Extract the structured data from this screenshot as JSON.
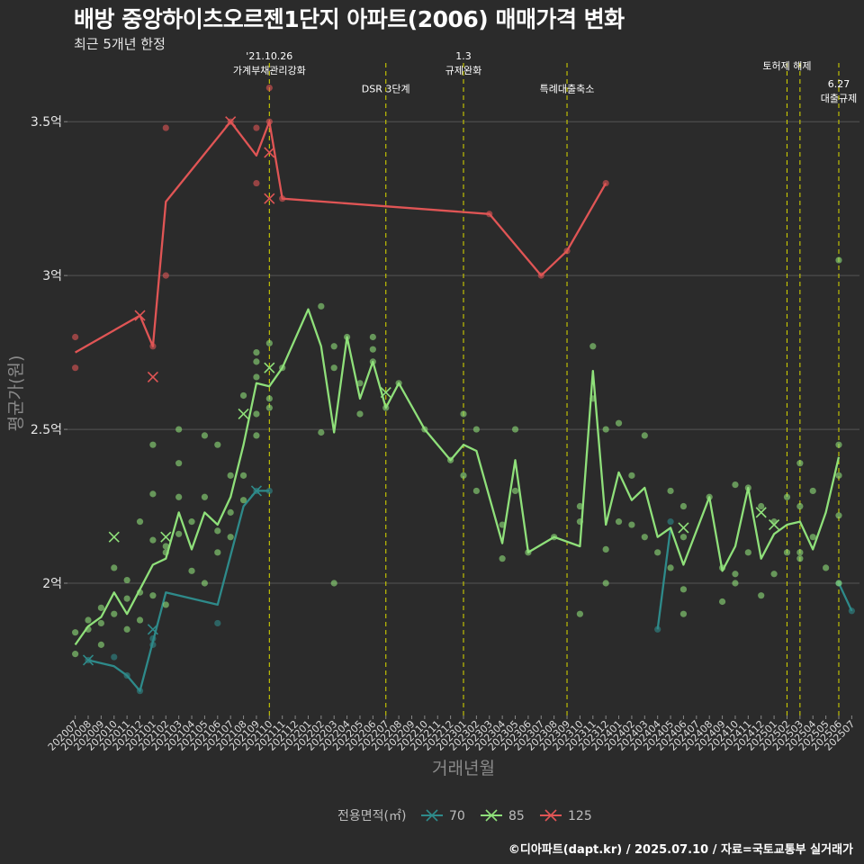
{
  "header": {
    "title": "배방 중앙하이츠오르젠1단지 아파트(2006) 매매가격 변화",
    "subtitle": "최근 5개년 한정"
  },
  "caption": "©디아파트(dapt.kr) / 2025.07.10 / 자료=국토교통부 실거래가",
  "colors": {
    "background": "#2b2b2b",
    "grid": "#555555",
    "vline": "#cccc00",
    "s70": "#2e8a8a",
    "s85": "#8fe07a",
    "s125": "#e05555"
  },
  "chart_data": {
    "type": "line",
    "title": "배방 중앙하이츠오르젠1단지 아파트(2006) 매매가격 변화",
    "subtitle": "최근 5개년 한정",
    "xlabel": "거래년월",
    "ylabel": "평균가(원)",
    "ylim": [
      1.57,
      3.72
    ],
    "yticks": [
      {
        "value": 2.0,
        "label": "2억"
      },
      {
        "value": 2.5,
        "label": "2.5억"
      },
      {
        "value": 3.0,
        "label": "3억"
      },
      {
        "value": 3.5,
        "label": "3.5억"
      }
    ],
    "grid": true,
    "legend_title": "전용면적(㎡)",
    "legend_position": "bottom",
    "x_categories": [
      "202007",
      "202008",
      "202009",
      "202010",
      "202011",
      "202012",
      "202101",
      "202102",
      "202103",
      "202104",
      "202105",
      "202106",
      "202107",
      "202108",
      "202109",
      "202110",
      "202111",
      "202112",
      "202201",
      "202202",
      "202203",
      "202204",
      "202205",
      "202206",
      "202207",
      "202208",
      "202209",
      "202210",
      "202211",
      "202212",
      "202301",
      "202302",
      "202303",
      "202304",
      "202305",
      "202306",
      "202307",
      "202308",
      "202309",
      "202310",
      "202311",
      "202312",
      "202401",
      "202402",
      "202403",
      "202404",
      "202405",
      "202406",
      "202407",
      "202408",
      "202409",
      "202410",
      "202411",
      "202412",
      "202501",
      "202502",
      "202503",
      "202504",
      "202505",
      "202506",
      "202507"
    ],
    "series": [
      {
        "name": "70",
        "color": "#2e8a8a",
        "line": [
          [
            "202008",
            1.75
          ],
          [
            "202010",
            1.73
          ],
          [
            "202011",
            1.7
          ],
          [
            "202012",
            1.65
          ],
          [
            "202101",
            1.81
          ],
          [
            "202102",
            1.97
          ],
          [
            "202106",
            1.93
          ],
          [
            "202108",
            2.25
          ],
          [
            "202109",
            2.3
          ],
          [
            "202110",
            2.3
          ],
          null,
          [
            "202404",
            1.85
          ],
          [
            "202405",
            2.18
          ],
          null,
          [
            "202506",
            2.0
          ],
          [
            "202507",
            1.91
          ]
        ],
        "points": [
          [
            "202008",
            1.75
          ],
          [
            "202010",
            1.76
          ],
          [
            "202011",
            1.7
          ],
          [
            "202012",
            1.65
          ],
          [
            "202101",
            1.8
          ],
          [
            "202101",
            1.82
          ],
          [
            "202106",
            1.87
          ],
          [
            "202109",
            2.3
          ],
          [
            "202110",
            2.3
          ],
          [
            "202404",
            1.85
          ],
          [
            "202405",
            2.2
          ],
          [
            "202506",
            2.0
          ],
          [
            "202507",
            1.91
          ]
        ],
        "cancelled": [
          [
            "202008",
            1.75
          ],
          [
            "202101",
            1.85
          ],
          [
            "202109",
            2.3
          ]
        ]
      },
      {
        "name": "85",
        "color": "#8fe07a",
        "line": [
          [
            "202007",
            1.8
          ],
          [
            "202008",
            1.86
          ],
          [
            "202009",
            1.89
          ],
          [
            "202010",
            1.97
          ],
          [
            "202011",
            1.9
          ],
          [
            "202012",
            1.98
          ],
          [
            "202101",
            2.06
          ],
          [
            "202102",
            2.08
          ],
          [
            "202103",
            2.23
          ],
          [
            "202104",
            2.11
          ],
          [
            "202105",
            2.23
          ],
          [
            "202106",
            2.19
          ],
          [
            "202107",
            2.28
          ],
          [
            "202108",
            2.45
          ],
          [
            "202109",
            2.65
          ],
          [
            "202110",
            2.64
          ],
          [
            "202111",
            2.7
          ],
          [
            "202201",
            2.89
          ],
          [
            "202202",
            2.77
          ],
          [
            "202203",
            2.49
          ],
          [
            "202204",
            2.8
          ],
          [
            "202205",
            2.6
          ],
          [
            "202206",
            2.72
          ],
          [
            "202207",
            2.57
          ],
          [
            "202208",
            2.65
          ],
          [
            "202210",
            2.5
          ],
          [
            "202212",
            2.4
          ],
          [
            "202301",
            2.45
          ],
          [
            "202302",
            2.43
          ],
          [
            "202304",
            2.13
          ],
          [
            "202305",
            2.4
          ],
          [
            "202306",
            2.1
          ],
          [
            "202308",
            2.15
          ],
          [
            "202310",
            2.12
          ],
          [
            "202311",
            2.69
          ],
          [
            "202312",
            2.19
          ],
          [
            "202401",
            2.36
          ],
          [
            "202402",
            2.27
          ],
          [
            "202403",
            2.31
          ],
          [
            "202404",
            2.15
          ],
          [
            "202405",
            2.18
          ],
          [
            "202406",
            2.06
          ],
          [
            "202408",
            2.28
          ],
          [
            "202409",
            2.04
          ],
          [
            "202410",
            2.12
          ],
          [
            "202411",
            2.31
          ],
          [
            "202412",
            2.08
          ],
          [
            "202501",
            2.16
          ],
          [
            "202502",
            2.19
          ],
          [
            "202503",
            2.2
          ],
          [
            "202504",
            2.11
          ],
          [
            "202505",
            2.23
          ],
          [
            "202506",
            2.41
          ]
        ],
        "points": [
          [
            "202007",
            1.77
          ],
          [
            "202007",
            1.84
          ],
          [
            "202008",
            1.85
          ],
          [
            "202008",
            1.88
          ],
          [
            "202009",
            1.87
          ],
          [
            "202009",
            1.92
          ],
          [
            "202009",
            1.8
          ],
          [
            "202010",
            1.9
          ],
          [
            "202010",
            2.05
          ],
          [
            "202011",
            1.95
          ],
          [
            "202011",
            1.85
          ],
          [
            "202011",
            2.01
          ],
          [
            "202012",
            2.2
          ],
          [
            "202012",
            1.97
          ],
          [
            "202012",
            1.88
          ],
          [
            "202101",
            2.45
          ],
          [
            "202101",
            2.29
          ],
          [
            "202101",
            2.14
          ],
          [
            "202101",
            1.96
          ],
          [
            "202102",
            2.1
          ],
          [
            "202102",
            2.12
          ],
          [
            "202102",
            1.93
          ],
          [
            "202103",
            2.5
          ],
          [
            "202103",
            2.39
          ],
          [
            "202103",
            2.28
          ],
          [
            "202103",
            2.16
          ],
          [
            "202104",
            2.2
          ],
          [
            "202104",
            2.04
          ],
          [
            "202105",
            2.48
          ],
          [
            "202105",
            2.28
          ],
          [
            "202105",
            2.0
          ],
          [
            "202106",
            2.45
          ],
          [
            "202106",
            2.17
          ],
          [
            "202106",
            2.1
          ],
          [
            "202107",
            2.35
          ],
          [
            "202107",
            2.23
          ],
          [
            "202107",
            2.15
          ],
          [
            "202108",
            2.61
          ],
          [
            "202108",
            2.35
          ],
          [
            "202108",
            2.27
          ],
          [
            "202109",
            2.75
          ],
          [
            "202109",
            2.72
          ],
          [
            "202109",
            2.67
          ],
          [
            "202109",
            2.55
          ],
          [
            "202109",
            2.48
          ],
          [
            "202110",
            2.78
          ],
          [
            "202110",
            2.6
          ],
          [
            "202110",
            2.57
          ],
          [
            "202111",
            2.7
          ],
          [
            "202202",
            2.9
          ],
          [
            "202202",
            2.49
          ],
          [
            "202203",
            2.77
          ],
          [
            "202203",
            2.7
          ],
          [
            "202203",
            2.0
          ],
          [
            "202204",
            2.8
          ],
          [
            "202205",
            2.65
          ],
          [
            "202205",
            2.55
          ],
          [
            "202206",
            2.8
          ],
          [
            "202206",
            2.76
          ],
          [
            "202206",
            2.72
          ],
          [
            "202207",
            2.57
          ],
          [
            "202208",
            2.65
          ],
          [
            "202210",
            2.5
          ],
          [
            "202212",
            2.4
          ],
          [
            "202301",
            2.55
          ],
          [
            "202301",
            2.35
          ],
          [
            "202302",
            2.5
          ],
          [
            "202302",
            2.3
          ],
          [
            "202304",
            2.19
          ],
          [
            "202304",
            2.08
          ],
          [
            "202305",
            2.5
          ],
          [
            "202305",
            2.3
          ],
          [
            "202306",
            2.1
          ],
          [
            "202308",
            2.15
          ],
          [
            "202310",
            2.25
          ],
          [
            "202310",
            2.2
          ],
          [
            "202310",
            1.9
          ],
          [
            "202311",
            2.77
          ],
          [
            "202311",
            2.6
          ],
          [
            "202312",
            2.5
          ],
          [
            "202312",
            2.11
          ],
          [
            "202312",
            2.0
          ],
          [
            "202401",
            2.52
          ],
          [
            "202401",
            2.2
          ],
          [
            "202402",
            2.35
          ],
          [
            "202402",
            2.19
          ],
          [
            "202403",
            2.48
          ],
          [
            "202403",
            2.15
          ],
          [
            "202404",
            2.1
          ],
          [
            "202405",
            2.3
          ],
          [
            "202405",
            2.05
          ],
          [
            "202406",
            2.25
          ],
          [
            "202406",
            2.15
          ],
          [
            "202406",
            1.98
          ],
          [
            "202406",
            1.9
          ],
          [
            "202408",
            2.28
          ],
          [
            "202409",
            2.05
          ],
          [
            "202409",
            1.94
          ],
          [
            "202410",
            2.32
          ],
          [
            "202410",
            2.03
          ],
          [
            "202410",
            2.0
          ],
          [
            "202411",
            2.31
          ],
          [
            "202411",
            2.1
          ],
          [
            "202412",
            2.25
          ],
          [
            "202412",
            1.96
          ],
          [
            "202501",
            2.2
          ],
          [
            "202501",
            2.03
          ],
          [
            "202502",
            2.28
          ],
          [
            "202502",
            2.1
          ],
          [
            "202503",
            2.39
          ],
          [
            "202503",
            2.25
          ],
          [
            "202503",
            2.1
          ],
          [
            "202503",
            2.08
          ],
          [
            "202504",
            2.3
          ],
          [
            "202504",
            2.15
          ],
          [
            "202505",
            2.05
          ],
          [
            "202506",
            3.05
          ],
          [
            "202506",
            2.45
          ],
          [
            "202506",
            2.35
          ],
          [
            "202506",
            2.22
          ],
          [
            "202506",
            2.0
          ]
        ],
        "cancelled": [
          [
            "202010",
            2.15
          ],
          [
            "202102",
            2.15
          ],
          [
            "202108",
            2.55
          ],
          [
            "202110",
            2.7
          ],
          [
            "202207",
            2.62
          ],
          [
            "202406",
            2.18
          ],
          [
            "202412",
            2.23
          ],
          [
            "202501",
            2.19
          ]
        ]
      },
      {
        "name": "125",
        "color": "#e05555",
        "line": [
          [
            "202007",
            2.75
          ],
          [
            "202012",
            2.87
          ],
          [
            "202101",
            2.77
          ],
          [
            "202102",
            3.24
          ],
          [
            "202107",
            3.5
          ],
          [
            "202109",
            3.39
          ],
          [
            "202110",
            3.5
          ],
          [
            "202111",
            3.25
          ],
          [
            "202303",
            3.2
          ],
          [
            "202307",
            3.0
          ],
          [
            "202309",
            3.08
          ],
          [
            "202312",
            3.3
          ]
        ],
        "points": [
          [
            "202007",
            2.8
          ],
          [
            "202007",
            2.7
          ],
          [
            "202101",
            2.77
          ],
          [
            "202102",
            3.48
          ],
          [
            "202102",
            3.0
          ],
          [
            "202107",
            3.5
          ],
          [
            "202109",
            3.48
          ],
          [
            "202109",
            3.3
          ],
          [
            "202110",
            3.61
          ],
          [
            "202110",
            3.5
          ],
          [
            "202111",
            3.25
          ],
          [
            "202303",
            3.2
          ],
          [
            "202307",
            3.0
          ],
          [
            "202309",
            3.08
          ],
          [
            "202312",
            3.3
          ]
        ],
        "cancelled": [
          [
            "202012",
            2.87
          ],
          [
            "202101",
            2.67
          ],
          [
            "202107",
            3.5
          ],
          [
            "202110",
            3.4
          ],
          [
            "202110",
            3.25
          ]
        ]
      }
    ],
    "events": [
      {
        "x": "202110",
        "lines": [
          "'21.10.26",
          "가계부채관리강화"
        ],
        "label_y": 3.656
      },
      {
        "x": "202207",
        "lines": [
          "DSR 3단계"
        ],
        "label_y": 3.595
      },
      {
        "x": "202301",
        "lines": [
          "1.3",
          "규제완화"
        ],
        "label_y": 3.656
      },
      {
        "x": "202309",
        "lines": [
          "특례대출축소"
        ],
        "label_y": 3.595
      },
      {
        "x": "202502",
        "lines": [
          "토허제 해제"
        ],
        "label_y": 3.67
      },
      {
        "x": "202503",
        "lines": [],
        "label_y": 3.67
      },
      {
        "x": "202506",
        "lines": [
          "6.27",
          "대출규제"
        ],
        "label_y": 3.565
      }
    ]
  }
}
